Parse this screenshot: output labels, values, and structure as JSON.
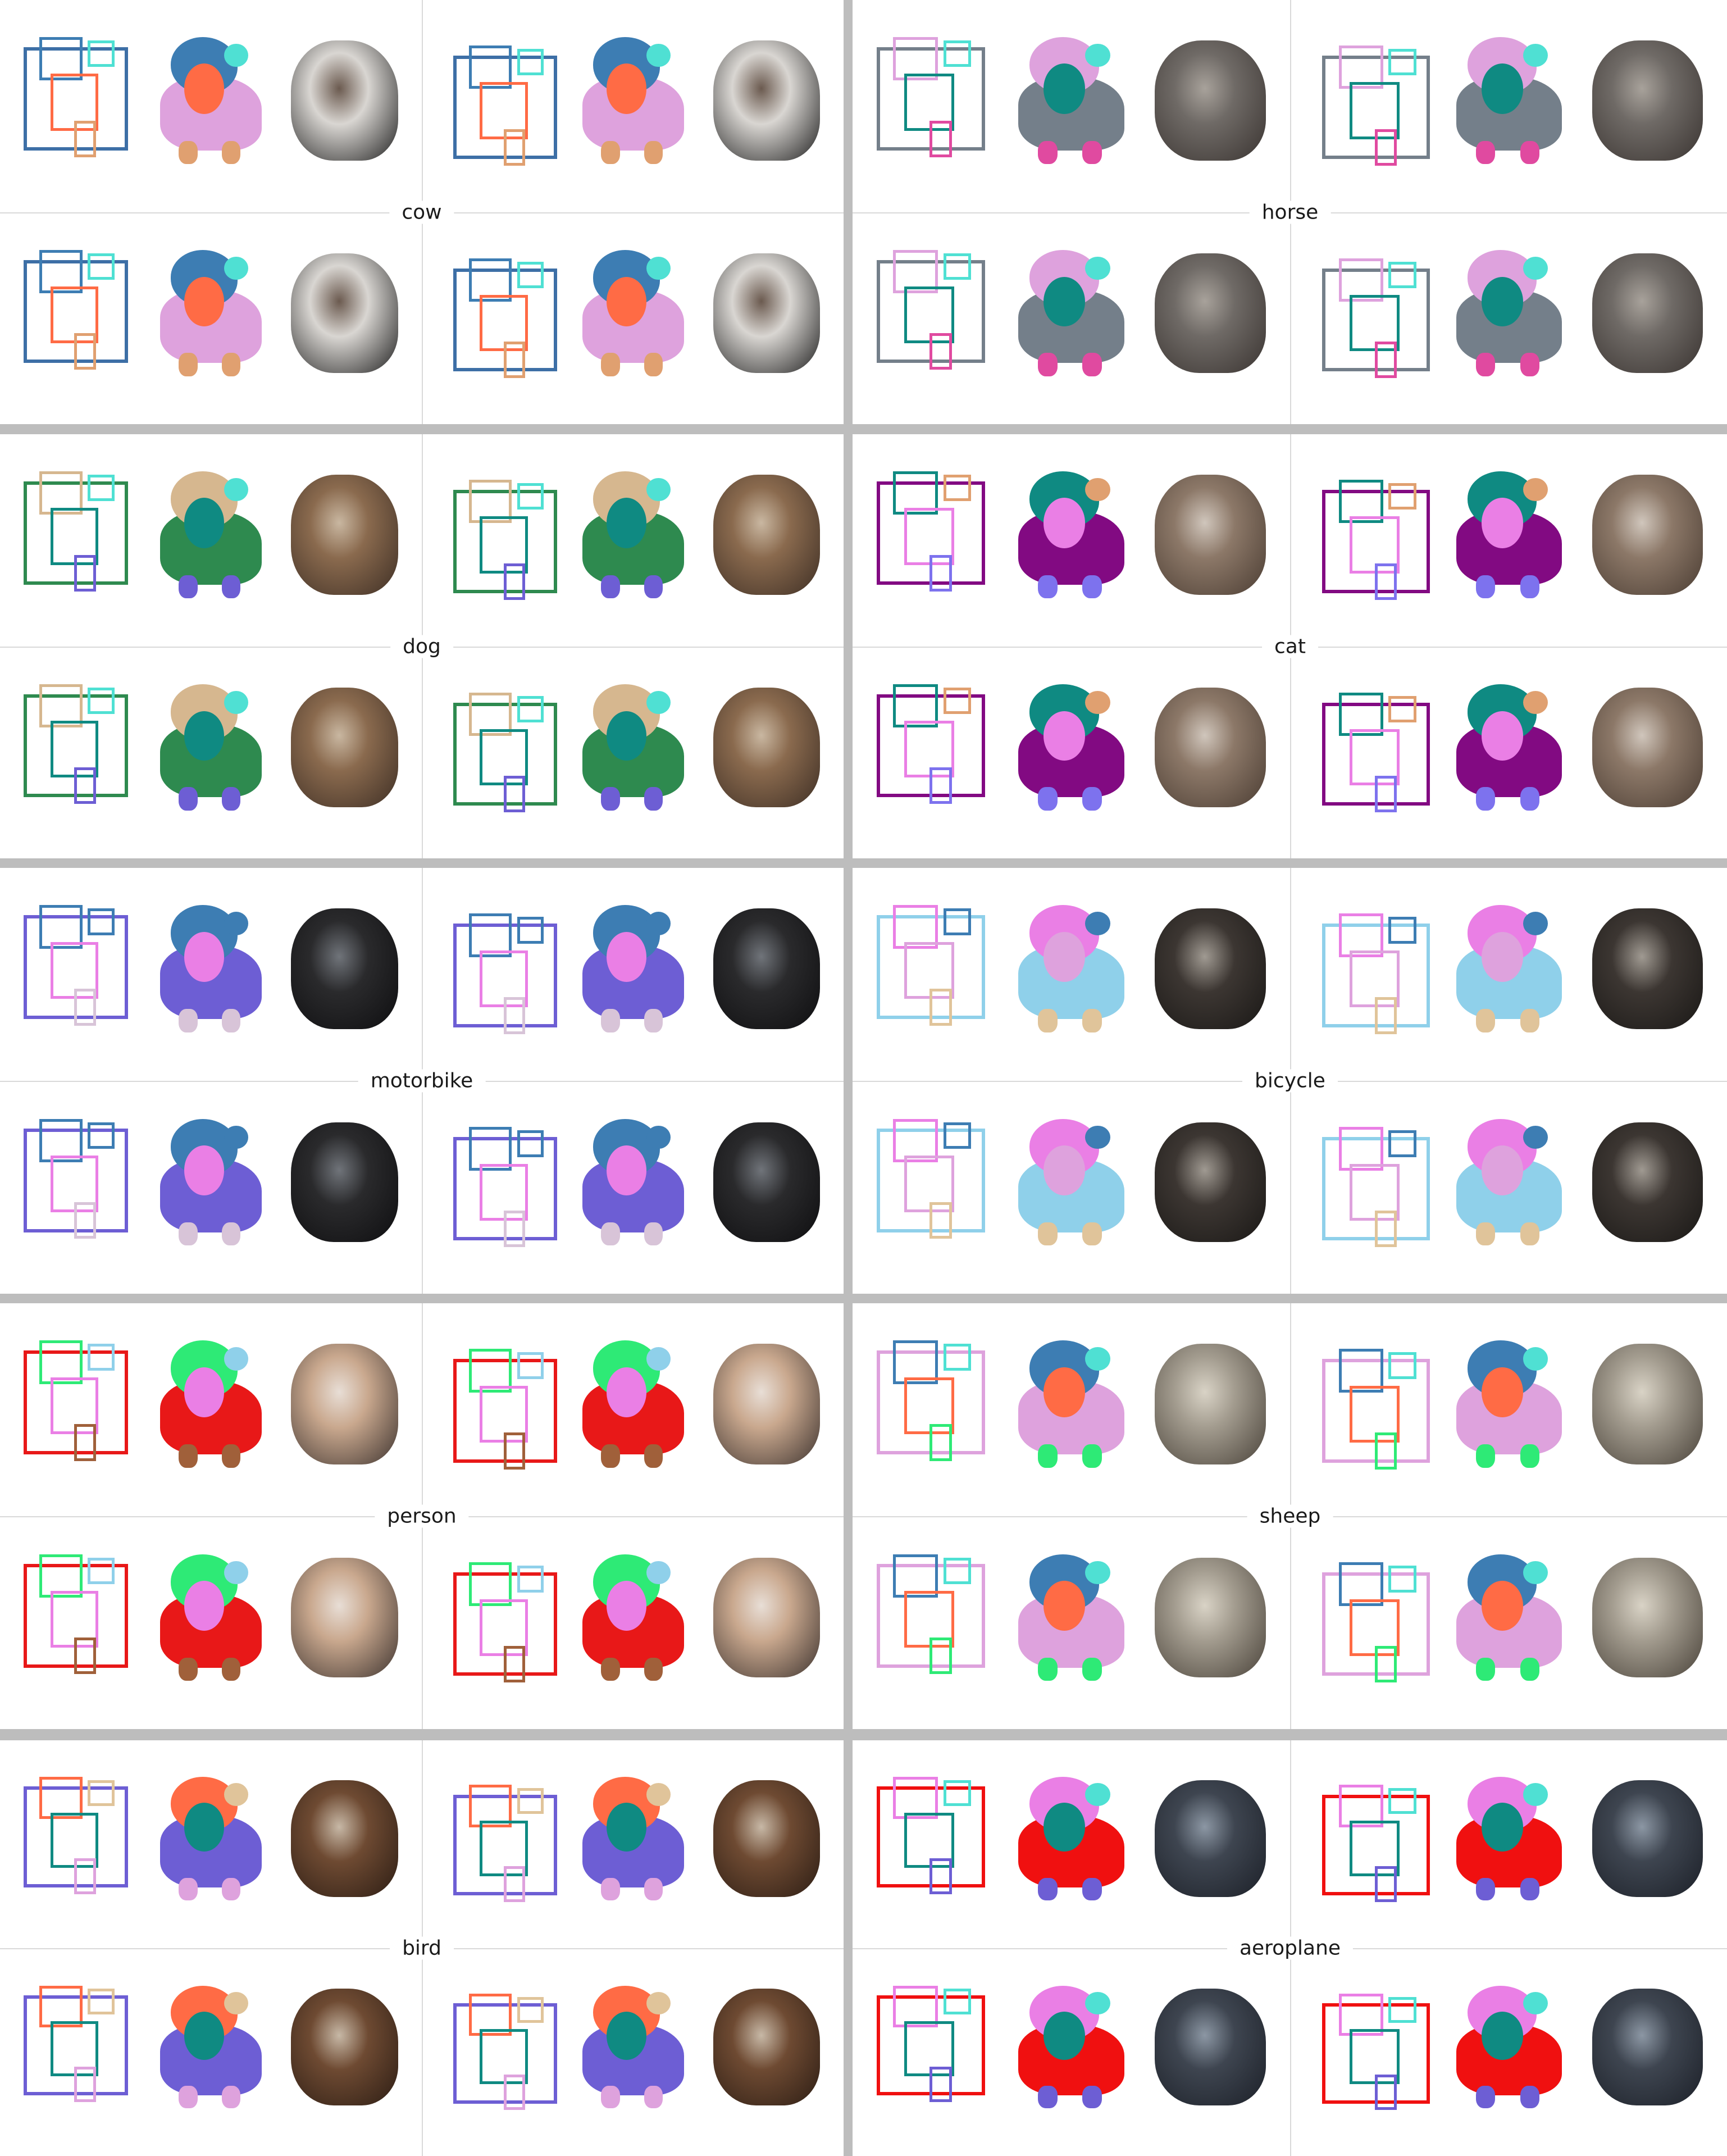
{
  "panels": [
    {
      "category": "cow",
      "colors": {
        "body": "#dea2dd",
        "head": "#3d7db3",
        "face": "#ff6b45",
        "limb": "#e0a070",
        "ear": "#4fe0d3",
        "box": "#3d6fa6"
      },
      "photo": [
        "#d9d6d2",
        "#1f1f1f",
        "#6b5a4f"
      ]
    },
    {
      "category": "horse",
      "colors": {
        "body": "#747f8a",
        "head": "#dea2dd",
        "face": "#0f8a82",
        "limb": "#e04aa0",
        "ear": "#4fe0d3",
        "box": "#747f8a"
      },
      "photo": [
        "#6f6a66",
        "#3a3431",
        "#a8a29b"
      ]
    },
    {
      "category": "dog",
      "colors": {
        "body": "#2e8a4f",
        "head": "#d6b78f",
        "face": "#0f8a82",
        "limb": "#6d5ed4",
        "ear": "#4fe0d3",
        "box": "#2e8a4f"
      },
      "photo": [
        "#8a6a4e",
        "#3e2f25",
        "#c9b7a1"
      ]
    },
    {
      "category": "cat",
      "colors": {
        "body": "#820a82",
        "head": "#0f8a82",
        "face": "#ea7fe5",
        "limb": "#7d72ee",
        "ear": "#e0a070",
        "box": "#820a82"
      },
      "photo": [
        "#8c7868",
        "#4b3d33",
        "#d0c6bc"
      ]
    },
    {
      "category": "motorbike",
      "colors": {
        "body": "#6d5ed4",
        "head": "#3d7db3",
        "face": "#ea7fe5",
        "limb": "#d8c4d8",
        "ear": "#3d7db3",
        "box": "#6d5ed4"
      },
      "photo": [
        "#2a2a2c",
        "#0e0e10",
        "#70747a"
      ]
    },
    {
      "category": "bicycle",
      "colors": {
        "body": "#8fd0ea",
        "head": "#ea7fe5",
        "face": "#dea2dd",
        "limb": "#e0c49a",
        "ear": "#3d7db3",
        "box": "#8fd0ea"
      },
      "photo": [
        "#3c3632",
        "#1a1816",
        "#a09a92"
      ]
    },
    {
      "category": "person",
      "colors": {
        "body": "#e81818",
        "head": "#2eea76",
        "face": "#ea7fe5",
        "limb": "#a0603a",
        "ear": "#8fd0ea",
        "box": "#e81818"
      },
      "photo": [
        "#c9a88e",
        "#3e3430",
        "#e8ded6"
      ]
    },
    {
      "category": "sheep",
      "colors": {
        "body": "#dea2dd",
        "head": "#3d7db3",
        "face": "#ff6b45",
        "limb": "#2eea76",
        "ear": "#4fe0d3",
        "box": "#dea2dd"
      },
      "photo": [
        "#a39c8f",
        "#4a433a",
        "#d9d3c6"
      ]
    },
    {
      "category": "bird",
      "colors": {
        "body": "#6d5ed4",
        "head": "#ff6b45",
        "face": "#0f8a82",
        "limb": "#dea2dd",
        "ear": "#e0c49a",
        "box": "#6d5ed4"
      },
      "photo": [
        "#6e4a32",
        "#2c1d14",
        "#c7b8a6"
      ]
    },
    {
      "category": "aeroplane",
      "colors": {
        "body": "#f01010",
        "head": "#ea7fe5",
        "face": "#0f8a82",
        "limb": "#6d5ed4",
        "ear": "#4fe0d3",
        "box": "#f01010"
      },
      "photo": [
        "#3e4550",
        "#1c2028",
        "#8c97a4"
      ]
    }
  ]
}
